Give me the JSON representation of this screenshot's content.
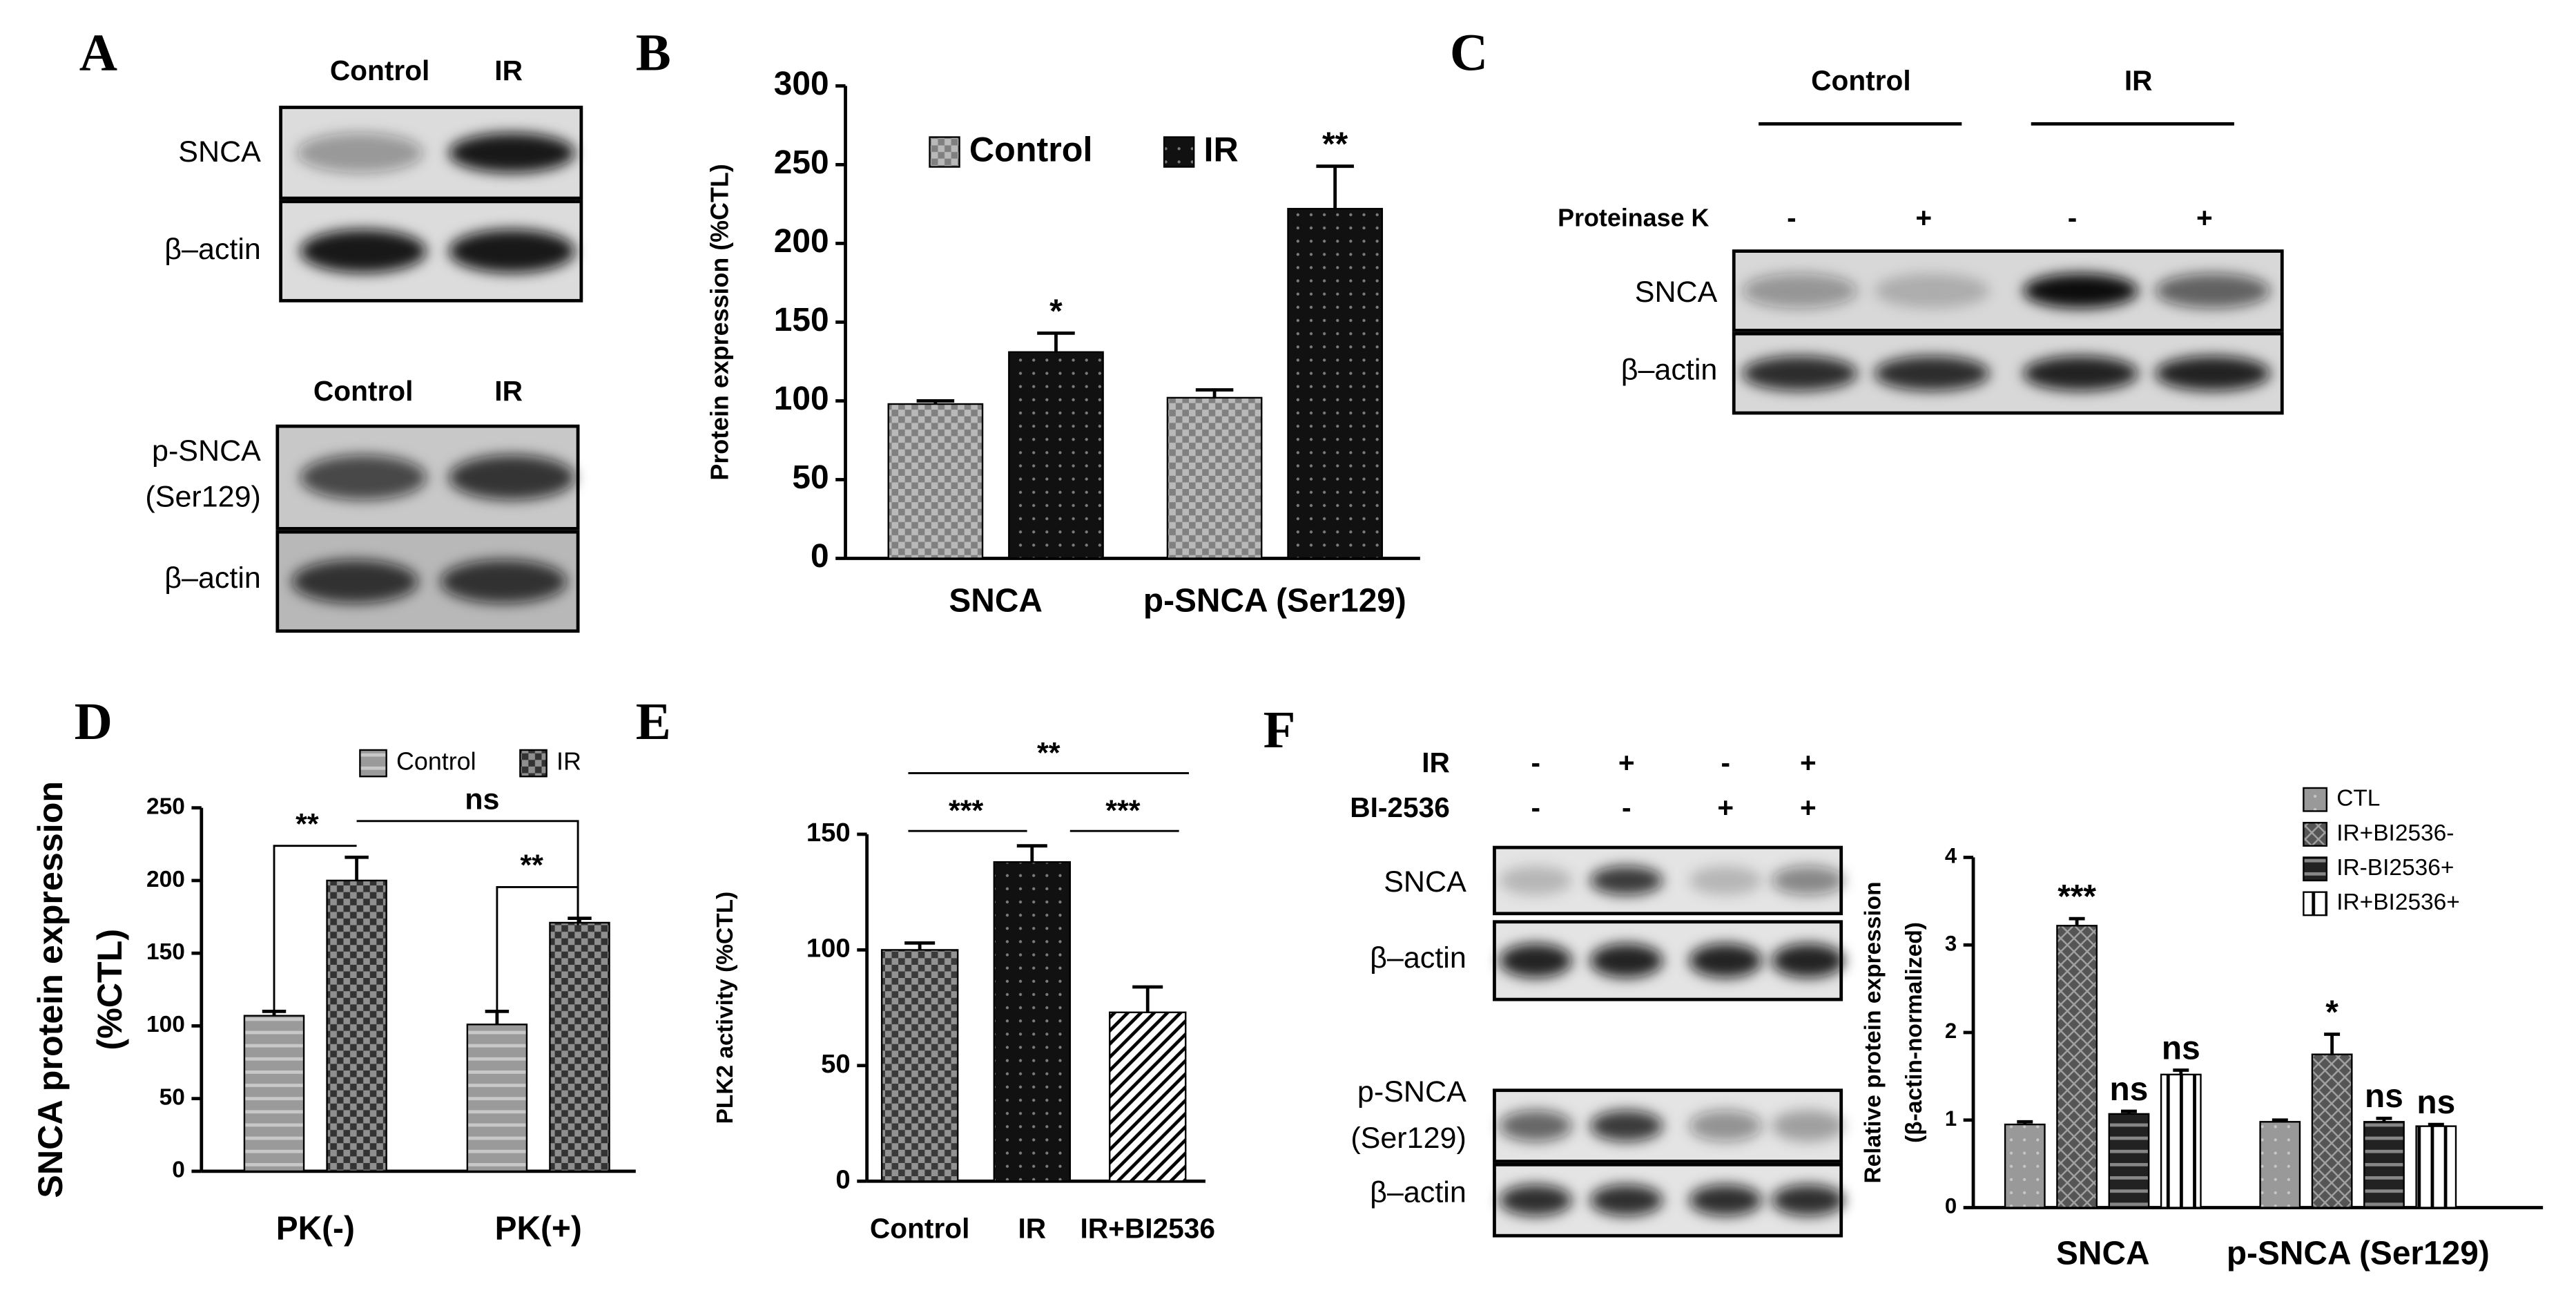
{
  "panels": [
    "A",
    "B",
    "C",
    "D",
    "E",
    "F"
  ],
  "blots": {
    "A": [
      {
        "columns": [
          "Control",
          "IR"
        ],
        "rows": [
          "SNCA",
          "β–actin"
        ]
      },
      {
        "columns": [
          "Control",
          "IR"
        ],
        "rows": [
          [
            "p-SNCA",
            "(Ser129)"
          ],
          "β–actin"
        ]
      }
    ],
    "C": {
      "groups": [
        "Control",
        "IR"
      ],
      "condition": "Proteinase K",
      "signs": [
        "-",
        "+",
        "-",
        "+"
      ],
      "rows": [
        "SNCA",
        "β–actin"
      ]
    },
    "F": {
      "conditions": [
        {
          "name": "IR",
          "signs": [
            "-",
            "+",
            "-",
            "+"
          ]
        },
        {
          "name": "BI-2536",
          "signs": [
            "-",
            "-",
            "+",
            "+"
          ]
        }
      ],
      "rows": [
        "SNCA",
        "β–actin",
        [
          "p-SNCA",
          "(Ser129)"
        ],
        "β–actin"
      ]
    }
  },
  "chart_data": [
    {
      "type": "bar",
      "ylabel": [
        "Protein expression (%CTL)"
      ],
      "categories": [
        "SNCA",
        "p-SNCA (Ser129)"
      ],
      "series": [
        {
          "name": "Control",
          "color": "#808080",
          "pattern": "checker",
          "values": [
            98,
            102
          ],
          "errors": [
            2,
            5
          ]
        },
        {
          "name": "IR",
          "color": "#111111",
          "pattern": "dots",
          "values": [
            131,
            222
          ],
          "errors": [
            12,
            27
          ],
          "annotations": [
            "*",
            "**"
          ]
        }
      ],
      "ylim": [
        0,
        300
      ],
      "yticks": [
        0,
        50,
        100,
        150,
        200,
        250,
        300
      ],
      "legend": "top"
    },
    {
      "type": "bar",
      "ylabel": [
        "SNCA protein expression",
        "(%CTL)"
      ],
      "categories": [
        "PK(-)",
        "PK(+)"
      ],
      "series": [
        {
          "name": "Control",
          "color": "#9a9a9a",
          "pattern": "hstripe",
          "values": [
            107,
            101
          ],
          "errors": [
            3,
            9
          ]
        },
        {
          "name": "IR",
          "color": "#333333",
          "pattern": "checker",
          "values": [
            200,
            171
          ],
          "errors": [
            16,
            3
          ]
        }
      ],
      "ylim": [
        0,
        250
      ],
      "yticks": [
        0,
        50,
        100,
        150,
        200,
        250
      ],
      "comparisons": [
        "**",
        "ns",
        "**"
      ],
      "legend": "top"
    },
    {
      "type": "bar",
      "ylabel": [
        "PLK2 activity (%CTL)"
      ],
      "categories": [
        "Control",
        "IR",
        "IR+BI2536"
      ],
      "values": [
        100,
        138,
        73
      ],
      "errors": [
        3,
        7,
        11
      ],
      "colors": [
        "#3a3a3a",
        "#111111",
        "#ffffff"
      ],
      "patterns": [
        "checker",
        "dots",
        "diag"
      ],
      "ylim": [
        0,
        150
      ],
      "yticks": [
        0,
        50,
        100,
        150
      ],
      "comparisons": [
        "**",
        "***",
        "***"
      ]
    },
    {
      "type": "bar",
      "ylabel": [
        "Relative protein expression",
        "(β-actin-normalized)"
      ],
      "categories": [
        "SNCA",
        "p-SNCA (Ser129)"
      ],
      "series": [
        {
          "name": "CTL",
          "color": "#999999",
          "pattern": "dots",
          "values": [
            0.95,
            0.98
          ],
          "errors": [
            0.03,
            0.02
          ]
        },
        {
          "name": "IR+BI2536-",
          "color": "#555555",
          "pattern": "hatch",
          "values": [
            3.22,
            1.75
          ],
          "errors": [
            0.08,
            0.23
          ],
          "annotations": [
            "***",
            "*"
          ]
        },
        {
          "name": "IR-BI2536+",
          "color": "#222222",
          "pattern": "hstripe",
          "values": [
            1.07,
            0.98
          ],
          "errors": [
            0.03,
            0.04
          ],
          "annotations": [
            "ns",
            "ns"
          ]
        },
        {
          "name": "IR+BI2536+",
          "color": "#ffffff",
          "pattern": "vstripe",
          "values": [
            1.52,
            0.93
          ],
          "errors": [
            0.05,
            0.02
          ],
          "annotations": [
            "ns",
            "ns"
          ]
        }
      ],
      "ylim": [
        0,
        4
      ],
      "yticks": [
        0,
        1,
        2,
        3,
        4
      ],
      "legend": "top right"
    }
  ]
}
